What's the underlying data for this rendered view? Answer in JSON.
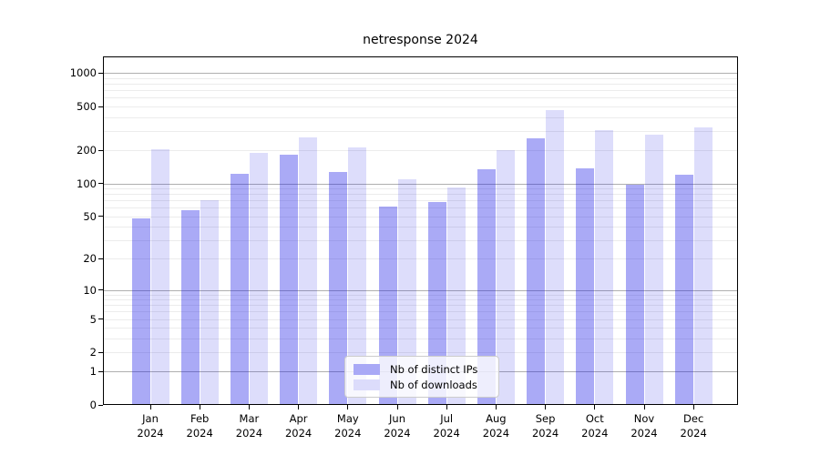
{
  "chart_data": {
    "type": "bar",
    "title": "netresponse 2024",
    "categories": [
      "Jan",
      "Feb",
      "Mar",
      "Apr",
      "May",
      "Jun",
      "Jul",
      "Aug",
      "Sep",
      "Oct",
      "Nov",
      "Dec"
    ],
    "xtick_year": "2024",
    "series": [
      {
        "name": "Nb of distinct IPs",
        "swatch_color": "#a9a9f6",
        "fill": "rgba(20,20,230,0.36)",
        "values": [
          48,
          57,
          122,
          184,
          128,
          61,
          68,
          134,
          256,
          136,
          98,
          121
        ]
      },
      {
        "name": "Nb of downloads",
        "swatch_color": "#dcdcfb",
        "fill": "rgba(20,20,230,0.145)",
        "values": [
          203,
          70,
          191,
          262,
          212,
          110,
          92,
          199,
          462,
          308,
          276,
          321
        ]
      }
    ],
    "yscale": "log(1+y)",
    "ylim": [
      0,
      1400
    ],
    "yticks": [
      0,
      1,
      2,
      5,
      10,
      20,
      50,
      100,
      200,
      500,
      1000
    ],
    "major_gridlines": [
      1,
      10,
      100,
      1000
    ],
    "minor_gridlines": [
      2,
      3,
      4,
      5,
      6,
      7,
      8,
      9,
      20,
      30,
      40,
      50,
      60,
      70,
      80,
      90,
      200,
      300,
      400,
      500,
      600,
      700,
      800,
      900
    ],
    "grid": "both",
    "legend_position": "lower center"
  }
}
